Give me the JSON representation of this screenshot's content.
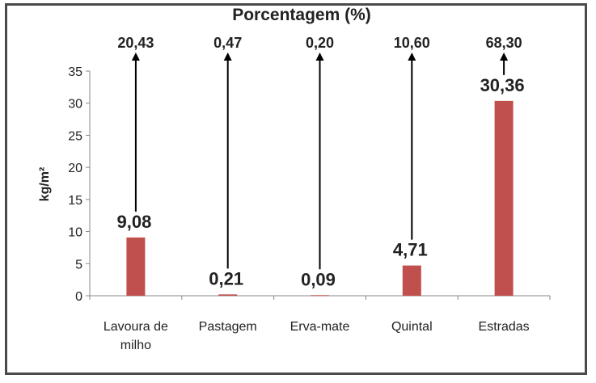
{
  "chart_data": {
    "type": "bar",
    "title": "Porcentagem (%)",
    "ylabel": "kg/m²",
    "xlabel": "",
    "ylim": [
      0,
      35
    ],
    "yticks": [
      0,
      5,
      10,
      15,
      20,
      25,
      30,
      35
    ],
    "categories": [
      "Lavoura de milho",
      "Pastagem",
      "Erva-mate",
      "Quintal",
      "Estradas"
    ],
    "category_lines": [
      [
        "Lavoura de",
        "milho"
      ],
      [
        "Pastagem"
      ],
      [
        "Erva-mate"
      ],
      [
        "Quintal"
      ],
      [
        "Estradas"
      ]
    ],
    "values": [
      9.08,
      0.21,
      0.09,
      4.71,
      30.36
    ],
    "value_labels": [
      "9,08",
      "0,21",
      "0,09",
      "4,71",
      "30,36"
    ],
    "percent_labels": [
      "20,43",
      "0,47",
      "0,20",
      "10,60",
      "68,30"
    ],
    "bar_color": "#c0504d",
    "grid": false,
    "legend": "none"
  }
}
